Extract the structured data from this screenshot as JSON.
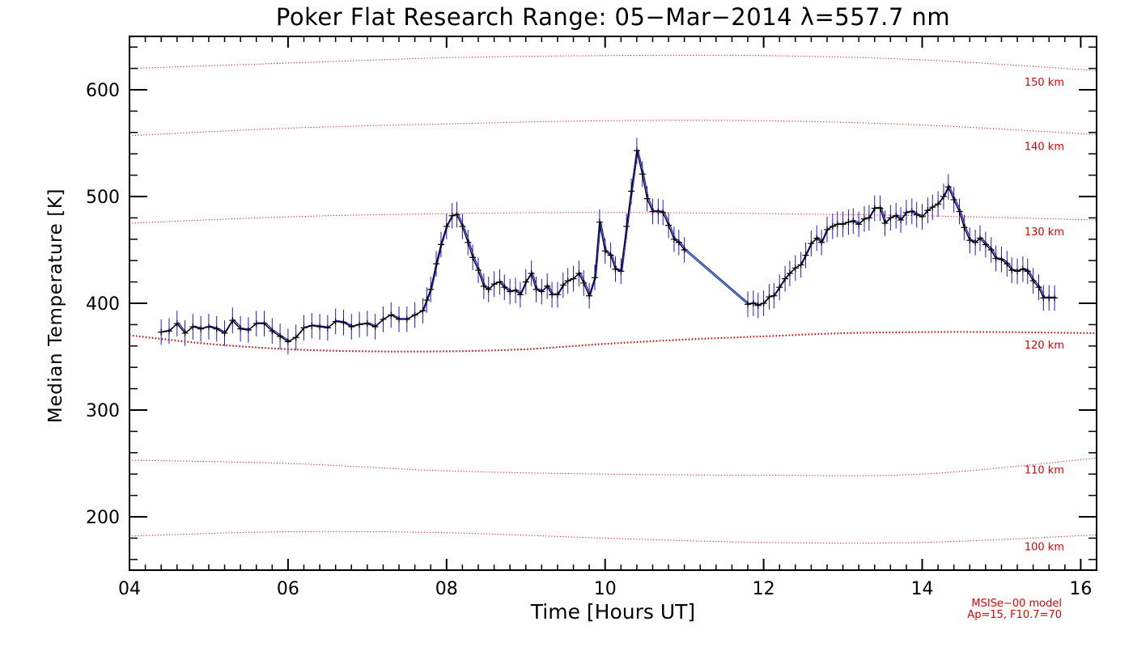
{
  "title": "Poker Flat Research Range: 05−Mar−2014 λ=557.7 nm",
  "model_note": {
    "line1": "MSISe−00 model",
    "line2": "Ap=15, F10.7=70"
  },
  "colors": {
    "data_line": "#000000",
    "error_bar": "#1a1adc",
    "model_curve": "#e60000",
    "gap_line": "#1f5e7a"
  },
  "chart_data": {
    "type": "line",
    "title": "Poker Flat Research Range: 05−Mar−2014 λ=557.7 nm",
    "xlabel": "Time [Hours UT]",
    "ylabel": "Median Temperature [K]",
    "xlim": [
      4.0,
      16.2
    ],
    "ylim": [
      150,
      650
    ],
    "x_ticks": [
      4,
      6,
      8,
      10,
      12,
      14,
      16
    ],
    "x_tick_labels": [
      "04",
      "06",
      "08",
      "10",
      "12",
      "14",
      "16"
    ],
    "y_ticks": [
      200,
      300,
      400,
      500,
      600
    ],
    "y_tick_labels": [
      "200",
      "300",
      "400",
      "500",
      "600"
    ],
    "grid": false,
    "series": [
      {
        "type": "line-errorbar",
        "error_k": 12,
        "points": [
          [
            4.4,
            373
          ],
          [
            4.5,
            374
          ],
          [
            4.6,
            381
          ],
          [
            4.7,
            372
          ],
          [
            4.8,
            378
          ],
          [
            4.9,
            376
          ],
          [
            5.0,
            378
          ],
          [
            5.1,
            376
          ],
          [
            5.2,
            372
          ],
          [
            5.3,
            384
          ],
          [
            5.4,
            376
          ],
          [
            5.5,
            375
          ],
          [
            5.6,
            381
          ],
          [
            5.7,
            381
          ],
          [
            5.8,
            374
          ],
          [
            5.9,
            369
          ],
          [
            6.0,
            364
          ],
          [
            6.1,
            368
          ],
          [
            6.2,
            377
          ],
          [
            6.3,
            379
          ],
          [
            6.4,
            378
          ],
          [
            6.5,
            377
          ],
          [
            6.6,
            383
          ],
          [
            6.7,
            382
          ],
          [
            6.8,
            378
          ],
          [
            6.9,
            380
          ],
          [
            7.0,
            381
          ],
          [
            7.1,
            378
          ],
          [
            7.2,
            385
          ],
          [
            7.3,
            389
          ],
          [
            7.4,
            385
          ],
          [
            7.5,
            385
          ],
          [
            7.6,
            389
          ],
          [
            7.7,
            393
          ],
          [
            7.75,
            403
          ],
          [
            7.8,
            413
          ],
          [
            7.87,
            437
          ],
          [
            7.93,
            455
          ],
          [
            8.0,
            472
          ],
          [
            8.07,
            482
          ],
          [
            8.13,
            483
          ],
          [
            8.2,
            472
          ],
          [
            8.27,
            457
          ],
          [
            8.33,
            443
          ],
          [
            8.4,
            431
          ],
          [
            8.47,
            416
          ],
          [
            8.53,
            413
          ],
          [
            8.6,
            418
          ],
          [
            8.67,
            420
          ],
          [
            8.73,
            415
          ],
          [
            8.8,
            411
          ],
          [
            8.87,
            412
          ],
          [
            8.93,
            408
          ],
          [
            9.0,
            420
          ],
          [
            9.07,
            428
          ],
          [
            9.13,
            413
          ],
          [
            9.2,
            411
          ],
          [
            9.27,
            416
          ],
          [
            9.33,
            408
          ],
          [
            9.4,
            408
          ],
          [
            9.47,
            417
          ],
          [
            9.53,
            421
          ],
          [
            9.6,
            423
          ],
          [
            9.67,
            428
          ],
          [
            9.73,
            419
          ],
          [
            9.8,
            407
          ],
          [
            9.87,
            424
          ],
          [
            9.93,
            476
          ],
          [
            10.0,
            449
          ],
          [
            10.07,
            445
          ],
          [
            10.13,
            432
          ],
          [
            10.2,
            430
          ],
          [
            10.27,
            472
          ],
          [
            10.33,
            505
          ],
          [
            10.4,
            543
          ],
          [
            10.47,
            521
          ],
          [
            10.53,
            498
          ],
          [
            10.6,
            486
          ],
          [
            10.67,
            486
          ],
          [
            10.73,
            485
          ],
          [
            10.8,
            473
          ],
          [
            10.87,
            460
          ],
          [
            10.93,
            457
          ],
          [
            11.0,
            450
          ],
          [
            11.8,
            399
          ],
          [
            11.87,
            400
          ],
          [
            11.93,
            398
          ],
          [
            12.0,
            400
          ],
          [
            12.07,
            406
          ],
          [
            12.13,
            407
          ],
          [
            12.2,
            415
          ],
          [
            12.27,
            423
          ],
          [
            12.33,
            428
          ],
          [
            12.4,
            433
          ],
          [
            12.47,
            436
          ],
          [
            12.53,
            445
          ],
          [
            12.6,
            456
          ],
          [
            12.67,
            461
          ],
          [
            12.73,
            457
          ],
          [
            12.8,
            469
          ],
          [
            12.87,
            472
          ],
          [
            12.93,
            474
          ],
          [
            13.0,
            474
          ],
          [
            13.07,
            476
          ],
          [
            13.13,
            477
          ],
          [
            13.2,
            474
          ],
          [
            13.27,
            479
          ],
          [
            13.33,
            480
          ],
          [
            13.4,
            489
          ],
          [
            13.47,
            489
          ],
          [
            13.53,
            475
          ],
          [
            13.6,
            480
          ],
          [
            13.67,
            482
          ],
          [
            13.73,
            478
          ],
          [
            13.8,
            485
          ],
          [
            13.87,
            486
          ],
          [
            13.93,
            483
          ],
          [
            14.0,
            481
          ],
          [
            14.07,
            487
          ],
          [
            14.13,
            490
          ],
          [
            14.2,
            493
          ],
          [
            14.27,
            500
          ],
          [
            14.33,
            509
          ],
          [
            14.4,
            497
          ],
          [
            14.47,
            486
          ],
          [
            14.53,
            471
          ],
          [
            14.6,
            459
          ],
          [
            14.67,
            457
          ],
          [
            14.73,
            461
          ],
          [
            14.8,
            455
          ],
          [
            14.87,
            450
          ],
          [
            14.93,
            442
          ],
          [
            15.0,
            441
          ],
          [
            15.07,
            437
          ],
          [
            15.13,
            431
          ],
          [
            15.2,
            430
          ],
          [
            15.27,
            432
          ],
          [
            15.33,
            430
          ],
          [
            15.4,
            421
          ],
          [
            15.47,
            415
          ],
          [
            15.53,
            405
          ],
          [
            15.6,
            405
          ],
          [
            15.67,
            405
          ]
        ]
      }
    ],
    "model_curves": [
      {
        "label": "100 km",
        "points": [
          [
            4.0,
            182
          ],
          [
            6.0,
            186
          ],
          [
            8.0,
            185
          ],
          [
            10.0,
            180
          ],
          [
            12.0,
            176
          ],
          [
            14.0,
            176
          ],
          [
            16.2,
            183
          ]
        ]
      },
      {
        "label": "110 km",
        "points": [
          [
            4.0,
            253
          ],
          [
            6.0,
            250
          ],
          [
            8.0,
            243
          ],
          [
            10.0,
            240
          ],
          [
            12.0,
            239
          ],
          [
            14.0,
            240
          ],
          [
            16.2,
            255
          ]
        ]
      },
      {
        "label": "120 km",
        "points": [
          [
            4.0,
            370
          ],
          [
            5.0,
            362
          ],
          [
            6.0,
            357
          ],
          [
            7.0,
            355
          ],
          [
            8.0,
            355
          ],
          [
            9.0,
            357
          ],
          [
            10.0,
            362
          ],
          [
            11.0,
            366
          ],
          [
            12.0,
            369
          ],
          [
            13.0,
            372
          ],
          [
            14.0,
            373
          ],
          [
            15.0,
            373
          ],
          [
            16.2,
            372
          ]
        ]
      },
      {
        "label": "130 km",
        "points": [
          [
            4.0,
            475
          ],
          [
            6.0,
            481
          ],
          [
            8.0,
            484
          ],
          [
            10.0,
            485
          ],
          [
            12.0,
            484
          ],
          [
            14.0,
            482
          ],
          [
            16.2,
            478
          ]
        ]
      },
      {
        "label": "140 km",
        "points": [
          [
            4.0,
            557
          ],
          [
            6.0,
            564
          ],
          [
            8.0,
            568
          ],
          [
            10.0,
            571
          ],
          [
            12.0,
            571
          ],
          [
            14.0,
            567
          ],
          [
            16.2,
            558
          ]
        ]
      },
      {
        "label": "150 km",
        "points": [
          [
            4.0,
            620
          ],
          [
            6.0,
            625
          ],
          [
            8.0,
            630
          ],
          [
            10.0,
            632
          ],
          [
            12.0,
            632
          ],
          [
            14.0,
            628
          ],
          [
            16.2,
            618
          ]
        ]
      }
    ]
  }
}
